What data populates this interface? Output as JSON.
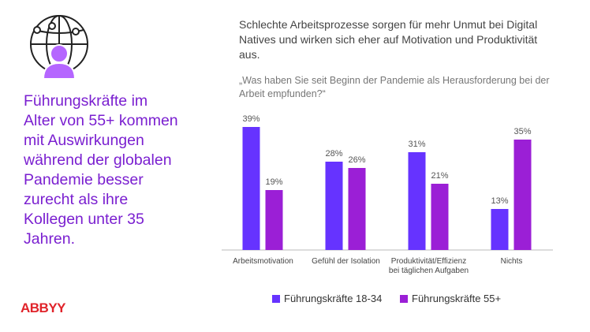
{
  "side_text": "Führungskräfte im Alter von 55+ kommen mit Auswirkungen während der globalen Pandemie besser zurecht als ihre Kollegen unter 35 Jahren.",
  "logo": "ABBYY",
  "chart_data": {
    "type": "bar",
    "title": "Schlechte Arbeitsprozesse sorgen für mehr Unmut bei Digital Natives und wirken sich eher auf Motivation und Produktivität aus.",
    "subtitle": "„Was haben Sie seit Beginn der Pandemie als Herausforderung bei der Arbeit empfunden?“",
    "categories": [
      "Arbeitsmotivation",
      "Gefühl der Isolation",
      "Produktivität/Effizienz bei täglichen Aufgaben",
      "Nichts"
    ],
    "series": [
      {
        "name": "Führungskräfte 18-34",
        "color": "#6633ff",
        "values": [
          39,
          28,
          31,
          13
        ],
        "value_labels": [
          "39%",
          "28%",
          "31%",
          "13%"
        ]
      },
      {
        "name": "Führungskräfte 55+",
        "color": "#9b1fd6",
        "values": [
          19,
          26,
          21,
          35
        ],
        "value_labels": [
          "19%",
          "26%",
          "21%",
          "35%"
        ]
      }
    ]
  }
}
